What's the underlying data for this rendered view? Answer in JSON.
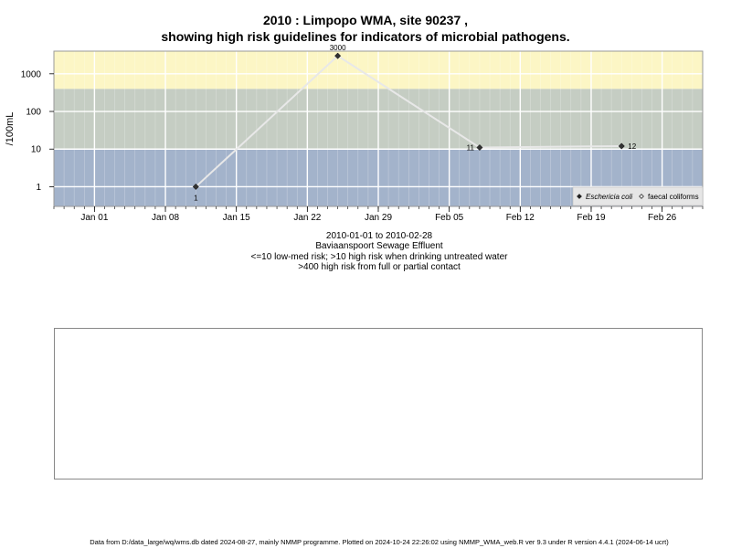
{
  "title_line1": "2010 : Limpopo WMA, site 90237 ,",
  "title_line2": "showing high risk guidelines for indicators of microbial pathogens.",
  "sub1": "2010-01-01 to 2010-02-28",
  "sub2": "Baviaanspoort Sewage Effluent",
  "sub3": "<=10 low-med risk; >10 high risk when drinking untreated water",
  "sub4": ">400 high risk from full or partial contact",
  "footer": "Data from D:/data_large/wq/wms.db dated 2024-08-27, mainly NMMP programme. Plotted on 2024-10-24 22:26:02 using NMMP_WMA_web.R ver 9.3 under R version 4.4.1 (2024-06-14 ucrt)",
  "colors": {
    "band_low": "#a3b3cb",
    "band_mid": "#c5cdc3",
    "band_high": "#fcf6c5",
    "grid": "#ffffff",
    "series_line": "#e8e8e8",
    "marker": "#333333"
  },
  "chart_data": {
    "type": "line",
    "title": "2010 : Limpopo WMA, site 90237 , showing high risk guidelines for indicators of microbial pathogens.",
    "ylabel": "/100mL",
    "y_scale": "log10",
    "ylim": [
      0.3,
      4000
    ],
    "y_ticks": [
      1,
      10,
      100,
      1000
    ],
    "y_tick_labels": [
      "1",
      "10",
      "100",
      "1000"
    ],
    "xlim": [
      "2009-12-28",
      "2010-03-02"
    ],
    "x_ticks": [
      "2010-01-01",
      "2010-01-08",
      "2010-01-15",
      "2010-01-22",
      "2010-01-29",
      "2010-02-05",
      "2010-02-12",
      "2010-02-19",
      "2010-02-26"
    ],
    "x_tick_labels": [
      "Jan 01",
      "Jan 08",
      "Jan 15",
      "Jan 22",
      "Jan 29",
      "Feb 05",
      "Feb 12",
      "Feb 19",
      "Feb 26"
    ],
    "grid": true,
    "bands": [
      {
        "from": 0.3,
        "to": 10,
        "color": "#a3b3cb"
      },
      {
        "from": 10,
        "to": 400,
        "color": "#c5cdc3"
      },
      {
        "from": 400,
        "to": 4000,
        "color": "#fcf6c5"
      }
    ],
    "series": [
      {
        "name": "Eschericia coli",
        "x": [
          "2010-01-11",
          "2010-01-25",
          "2010-02-08",
          "2010-02-22"
        ],
        "y": [
          1,
          3000,
          11,
          12
        ],
        "labels": [
          "1",
          "3000",
          "11",
          "12"
        ],
        "marker": "diamond-filled"
      }
    ],
    "legend": {
      "position": "bottom-right",
      "entries": [
        {
          "label": "Eschericia coli",
          "marker": "diamond-filled",
          "italic": true
        },
        {
          "label": "faecal coliforms",
          "marker": "diamond-open",
          "italic": false
        }
      ]
    }
  }
}
